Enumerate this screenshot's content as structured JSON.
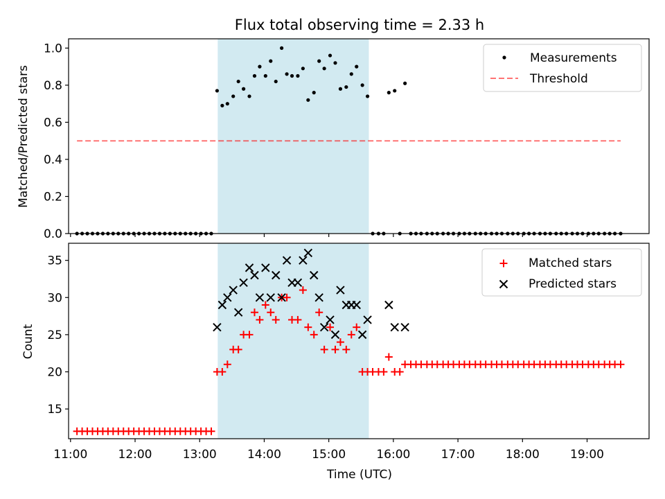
{
  "figure": {
    "title": "Flux total observing time = 2.33 h",
    "xlabel": "Time (UTC)"
  },
  "colors": {
    "band": "#add8e6",
    "threshold": "#ff0000",
    "measurement": "#000000",
    "matched": "#ff0000",
    "predicted": "#000000"
  },
  "chart_data": [
    {
      "type": "scatter",
      "ylabel": "Matched/Predicted stars",
      "x_unit": "hours UTC",
      "xlim": [
        10.97,
        19.96
      ],
      "ylim": [
        0.0,
        1.05
      ],
      "yticks": [
        0.0,
        0.2,
        0.4,
        0.6,
        0.8,
        1.0
      ],
      "ytick_labels": [
        "0.0",
        "0.2",
        "0.4",
        "0.6",
        "0.8",
        "1.0"
      ],
      "shaded_region": [
        13.28,
        15.62
      ],
      "legend_position": "top-right",
      "legend": [
        "Measurements",
        "Threshold"
      ],
      "series": [
        {
          "name": "Measurements",
          "marker": "dot",
          "x": [
            11.1,
            11.18,
            11.26,
            11.34,
            11.42,
            11.5,
            11.58,
            11.66,
            11.74,
            11.82,
            11.9,
            11.98,
            12.06,
            12.14,
            12.22,
            12.3,
            12.38,
            12.46,
            12.54,
            12.62,
            12.7,
            12.78,
            12.86,
            12.94,
            13.02,
            13.1,
            13.18,
            13.27,
            13.35,
            13.43,
            13.52,
            13.6,
            13.68,
            13.77,
            13.85,
            13.93,
            14.02,
            14.1,
            14.18,
            14.27,
            14.35,
            14.43,
            14.52,
            14.6,
            14.68,
            14.77,
            14.85,
            14.93,
            15.02,
            15.1,
            15.18,
            15.27,
            15.35,
            15.43,
            15.52,
            15.6,
            15.68,
            15.77,
            15.85,
            15.93,
            16.02,
            16.1,
            16.18,
            16.27,
            16.35,
            16.43,
            16.52,
            16.6,
            16.68,
            16.77,
            16.85,
            16.93,
            17.02,
            17.1,
            17.18,
            17.27,
            17.35,
            17.43,
            17.52,
            17.6,
            17.68,
            17.77,
            17.85,
            17.93,
            18.02,
            18.1,
            18.18,
            18.27,
            18.35,
            18.43,
            18.52,
            18.6,
            18.68,
            18.77,
            18.85,
            18.93,
            19.02,
            19.1,
            19.18,
            19.27,
            19.35,
            19.43,
            19.52
          ],
          "y": [
            0,
            0,
            0,
            0,
            0,
            0,
            0,
            0,
            0,
            0,
            0,
            0,
            0,
            0,
            0,
            0,
            0,
            0,
            0,
            0,
            0,
            0,
            0,
            0,
            0,
            0,
            0,
            0.77,
            0.69,
            0.7,
            0.74,
            0.82,
            0.78,
            0.74,
            0.85,
            0.9,
            0.85,
            0.93,
            0.82,
            1.0,
            0.86,
            0.85,
            0.85,
            0.89,
            0.72,
            0.76,
            0.93,
            0.89,
            0.96,
            0.92,
            0.78,
            0.79,
            0.86,
            0.9,
            0.8,
            0.74,
            0,
            0,
            0,
            0.76,
            0.77,
            0,
            0.81,
            0,
            0,
            0,
            0,
            0,
            0,
            0,
            0,
            0,
            0,
            0,
            0,
            0,
            0,
            0,
            0,
            0,
            0,
            0,
            0,
            0,
            0,
            0,
            0,
            0,
            0,
            0,
            0,
            0,
            0,
            0,
            0,
            0,
            0,
            0,
            0,
            0,
            0,
            0,
            0
          ]
        },
        {
          "name": "Threshold",
          "marker": "dashed-line",
          "x": [
            11.1,
            19.52
          ],
          "y": [
            0.5,
            0.5
          ]
        }
      ]
    },
    {
      "type": "scatter",
      "ylabel": "Count",
      "x_unit": "hours UTC",
      "xlim": [
        10.97,
        19.96
      ],
      "ylim": [
        11.0,
        37.3
      ],
      "yticks": [
        15,
        20,
        25,
        30,
        35
      ],
      "ytick_labels": [
        "15",
        "20",
        "25",
        "30",
        "35"
      ],
      "xticks": [
        11,
        12,
        13,
        14,
        15,
        16,
        17,
        18,
        19
      ],
      "xtick_labels": [
        "11:00",
        "12:00",
        "13:00",
        "14:00",
        "15:00",
        "16:00",
        "17:00",
        "18:00",
        "19:00"
      ],
      "shaded_region": [
        13.28,
        15.62
      ],
      "legend_position": "top-right",
      "legend": [
        "Matched stars",
        "Predicted stars"
      ],
      "series": [
        {
          "name": "Matched stars",
          "marker": "plus",
          "x": [
            11.1,
            11.18,
            11.26,
            11.34,
            11.42,
            11.5,
            11.58,
            11.66,
            11.74,
            11.82,
            11.9,
            11.98,
            12.06,
            12.14,
            12.22,
            12.3,
            12.38,
            12.46,
            12.54,
            12.62,
            12.7,
            12.78,
            12.86,
            12.94,
            13.02,
            13.1,
            13.18,
            13.27,
            13.35,
            13.43,
            13.52,
            13.6,
            13.68,
            13.77,
            13.85,
            13.93,
            14.02,
            14.1,
            14.18,
            14.27,
            14.35,
            14.43,
            14.52,
            14.6,
            14.68,
            14.77,
            14.85,
            14.93,
            15.02,
            15.1,
            15.18,
            15.27,
            15.35,
            15.43,
            15.52,
            15.6,
            15.68,
            15.77,
            15.85,
            15.93,
            16.02,
            16.1,
            16.18,
            16.27,
            16.35,
            16.43,
            16.52,
            16.6,
            16.68,
            16.77,
            16.85,
            16.93,
            17.02,
            17.1,
            17.18,
            17.27,
            17.35,
            17.43,
            17.52,
            17.6,
            17.68,
            17.77,
            17.85,
            17.93,
            18.02,
            18.1,
            18.18,
            18.27,
            18.35,
            18.43,
            18.52,
            18.6,
            18.68,
            18.77,
            18.85,
            18.93,
            19.02,
            19.1,
            19.18,
            19.27,
            19.35,
            19.43,
            19.52
          ],
          "y": [
            12,
            12,
            12,
            12,
            12,
            12,
            12,
            12,
            12,
            12,
            12,
            12,
            12,
            12,
            12,
            12,
            12,
            12,
            12,
            12,
            12,
            12,
            12,
            12,
            12,
            12,
            12,
            20,
            20,
            21,
            23,
            23,
            25,
            25,
            28,
            27,
            29,
            28,
            27,
            30,
            30,
            27,
            27,
            31,
            26,
            25,
            28,
            23,
            26,
            23,
            24,
            23,
            25,
            26,
            20,
            20,
            20,
            20,
            20,
            22,
            20,
            20,
            21,
            21,
            21,
            21,
            21,
            21,
            21,
            21,
            21,
            21,
            21,
            21,
            21,
            21,
            21,
            21,
            21,
            21,
            21,
            21,
            21,
            21,
            21,
            21,
            21,
            21,
            21,
            21,
            21,
            21,
            21,
            21,
            21,
            21,
            21,
            21,
            21,
            21,
            21,
            21,
            21
          ]
        },
        {
          "name": "Predicted stars",
          "marker": "x",
          "x": [
            13.27,
            13.35,
            13.43,
            13.52,
            13.6,
            13.68,
            13.77,
            13.85,
            13.93,
            14.02,
            14.1,
            14.18,
            14.27,
            14.35,
            14.43,
            14.52,
            14.6,
            14.68,
            14.77,
            14.85,
            14.93,
            15.02,
            15.1,
            15.18,
            15.27,
            15.35,
            15.43,
            15.52,
            15.6,
            15.93,
            16.02,
            16.18
          ],
          "y": [
            26,
            29,
            30,
            31,
            28,
            32,
            34,
            33,
            30,
            34,
            30,
            33,
            30,
            35,
            32,
            32,
            35,
            36,
            33,
            30,
            26,
            27,
            25,
            31,
            29,
            29,
            29,
            25,
            27,
            29,
            26,
            26
          ]
        }
      ]
    }
  ]
}
